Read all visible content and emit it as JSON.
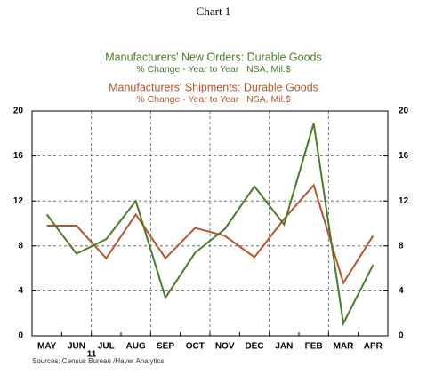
{
  "chart_data": {
    "type": "line",
    "title": "Chart 1",
    "categories": [
      "MAY",
      "JUN",
      "JUL",
      "AUG",
      "SEP",
      "OCT",
      "NOV",
      "DEC",
      "JAN",
      "FEB",
      "MAR",
      "APR"
    ],
    "year_label": "11",
    "series": [
      {
        "name": "Manufacturers' New Orders: Durable Goods",
        "subtitle": "% Change - Year to Year   NSA, Mil.$",
        "color": "#4b7a2b",
        "values": [
          10.8,
          7.3,
          8.6,
          12.0,
          3.4,
          7.4,
          9.5,
          13.3,
          9.9,
          18.9,
          1.1,
          6.3
        ]
      },
      {
        "name": "Manufacturers' Shipments: Durable Goods",
        "subtitle": "% Change - Year to Year   NSA, Mil.$",
        "color": "#b5562a",
        "values": [
          9.8,
          9.8,
          6.9,
          10.8,
          6.9,
          9.6,
          8.9,
          7.0,
          10.4,
          13.4,
          4.7,
          8.9
        ]
      }
    ],
    "ylim": [
      0,
      20
    ],
    "yticks": [
      0,
      4,
      8,
      12,
      16,
      20
    ],
    "y2lim": [
      0,
      20
    ],
    "y2ticks": [
      0,
      4,
      8,
      12,
      16,
      20
    ],
    "grid": true,
    "source": "Sources: Census Bureau /Haver Analytics"
  }
}
